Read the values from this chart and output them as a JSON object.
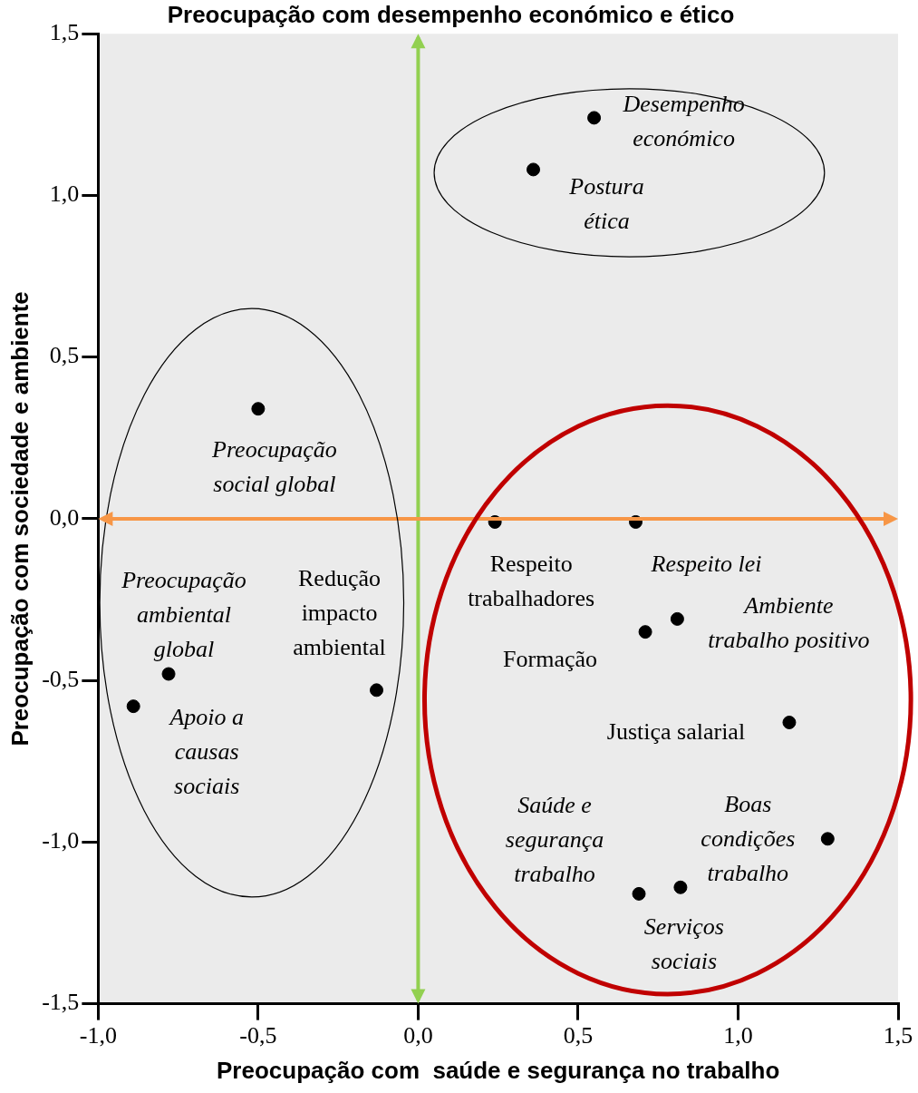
{
  "chart_data": {
    "type": "scatter",
    "title": "Preocupação com desempenho económico e ético",
    "xlabel": "Preocupação com  saúde e segurança no trabalho",
    "ylabel": "Preocupação com sociedade e ambiente",
    "x": [
      0.55,
      0.36,
      -0.5,
      -0.78,
      -0.89,
      -0.13,
      0.24,
      0.68,
      0.81,
      0.71,
      1.16,
      1.28,
      0.69,
      0.82
    ],
    "series": [
      {
        "color": "#000000",
        "values": [
          1.24,
          1.08,
          0.34,
          -0.48,
          -0.58,
          -0.53,
          -0.01,
          -0.01,
          -0.31,
          -0.35,
          -0.63,
          -0.99,
          -1.16,
          -1.14
        ]
      }
    ],
    "xlim": [
      -1.0,
      1.5
    ],
    "ylim": [
      -1.5,
      1.5
    ],
    "xticks": [
      {
        "value": -1.0,
        "label": "-1,0"
      },
      {
        "value": -0.5,
        "label": "-0,5"
      },
      {
        "value": 0,
        "label": "0,0"
      },
      {
        "value": 0.5,
        "label": "0,5"
      },
      {
        "value": 1.0,
        "label": "1,0"
      },
      {
        "value": 1.5,
        "label": "1,5"
      }
    ],
    "yticks": [
      {
        "value": -1.5,
        "label": "-1,5"
      },
      {
        "value": -1.0,
        "label": "-1,0"
      },
      {
        "value": -0.5,
        "label": "-0,5"
      },
      {
        "value": 0,
        "label": "0,0"
      },
      {
        "value": 0.5,
        "label": "0,5"
      },
      {
        "value": 1.0,
        "label": "1,0"
      },
      {
        "value": 1.5,
        "label": "1,5"
      }
    ],
    "ref_lines": [
      {
        "axis": "x",
        "value": 0,
        "color": "#92d050"
      },
      {
        "axis": "y",
        "value": 0,
        "color": "#f79646"
      }
    ],
    "annotations": [
      {
        "text": "Desempenho económico",
        "x": 0.55,
        "y": 1.24
      },
      {
        "text": "Postura ética",
        "x": 0.36,
        "y": 1.08
      },
      {
        "text": "Preocupação social global",
        "x": -0.5,
        "y": 0.34
      },
      {
        "text": "Preocupação ambiental global",
        "x": -0.78,
        "y": -0.48
      },
      {
        "text": "Apoio a causas sociais",
        "x": -0.89,
        "y": -0.58
      },
      {
        "text": "Redução impacto ambiental",
        "x": -0.13,
        "y": -0.53
      },
      {
        "text": "Respeito trabalhadores",
        "x": 0.24,
        "y": -0.01
      },
      {
        "text": "Respeito lei",
        "x": 0.68,
        "y": -0.01
      },
      {
        "text": "Ambiente trabalho positivo",
        "x": 0.81,
        "y": -0.31
      },
      {
        "text": "Formação",
        "x": 0.71,
        "y": -0.35
      },
      {
        "text": "Justiça salarial",
        "x": 1.16,
        "y": -0.63
      },
      {
        "text": "Boas condições trabalho",
        "x": 1.28,
        "y": -0.99
      },
      {
        "text": "Saúde e segurança trabalho",
        "x": 0.69,
        "y": -1.16
      },
      {
        "text": "Serviços sociais",
        "x": 0.82,
        "y": -1.14
      }
    ],
    "grid": false,
    "legend": false,
    "marker": "circle"
  }
}
